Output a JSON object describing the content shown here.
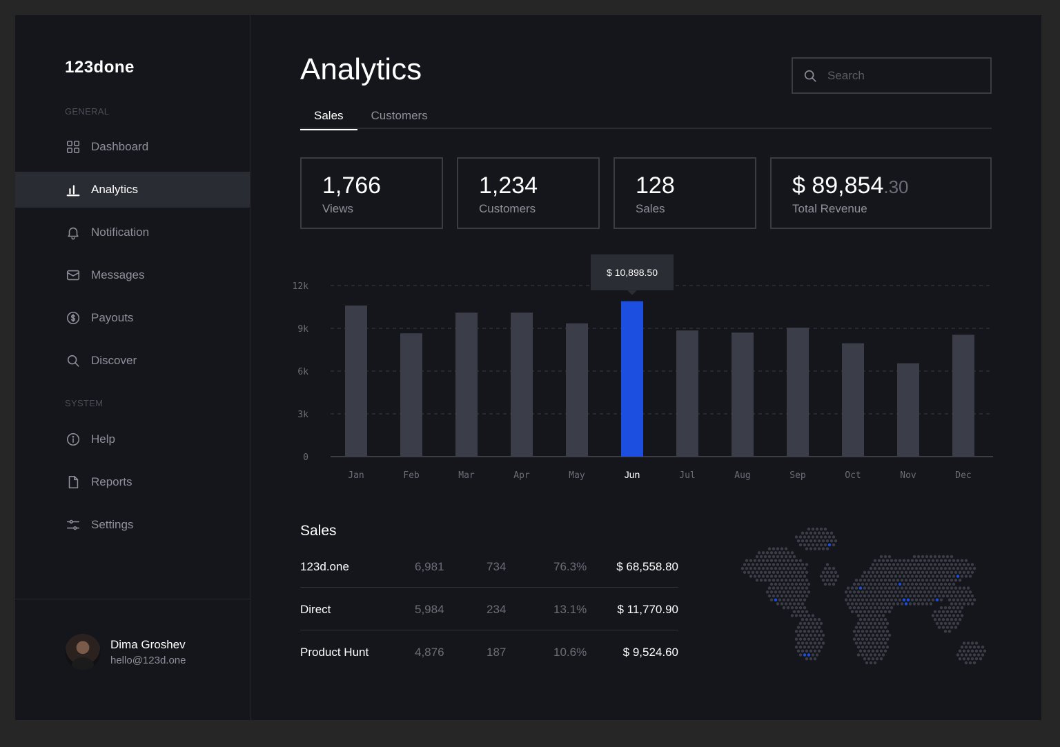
{
  "brand": {
    "logo": "123done"
  },
  "sidebar": {
    "general_label": "GENERAL",
    "system_label": "SYSTEM",
    "items": [
      {
        "label": "Dashboard",
        "icon": "grid-icon"
      },
      {
        "label": "Analytics",
        "icon": "bar-chart-icon"
      },
      {
        "label": "Notification",
        "icon": "bell-icon"
      },
      {
        "label": "Messages",
        "icon": "mail-icon"
      },
      {
        "label": "Payouts",
        "icon": "dollar-circle-icon"
      },
      {
        "label": "Discover",
        "icon": "search-icon"
      },
      {
        "label": "Help",
        "icon": "info-icon"
      },
      {
        "label": "Reports",
        "icon": "document-icon"
      },
      {
        "label": "Settings",
        "icon": "sliders-icon"
      }
    ],
    "active_item": "Analytics",
    "user": {
      "name": "Dima Groshev",
      "email": "hello@123d.one"
    }
  },
  "header": {
    "title": "Analytics",
    "search_placeholder": "Search",
    "tabs": [
      {
        "label": "Sales",
        "active": true
      },
      {
        "label": "Customers",
        "active": false
      }
    ]
  },
  "stats": [
    {
      "value": "1,766",
      "label": "Views"
    },
    {
      "value": "1,234",
      "label": "Customers"
    },
    {
      "value": "128",
      "label": "Sales"
    },
    {
      "value": "$ 89,854",
      "cents": ".30",
      "label": "Total Revenue"
    }
  ],
  "colors": {
    "accent": "#1c4fe0",
    "bar": "#3b3d48",
    "grid": "#3a3c44"
  },
  "chart_data": {
    "type": "bar",
    "categories": [
      "Jan",
      "Feb",
      "Mar",
      "Apr",
      "May",
      "Jun",
      "Jul",
      "Aug",
      "Sep",
      "Oct",
      "Nov",
      "Dec"
    ],
    "values": [
      10600,
      8650,
      10100,
      10100,
      9350,
      10898.5,
      8850,
      8700,
      9050,
      7950,
      6550,
      8550
    ],
    "y_ticks": [
      "0",
      "3k",
      "6k",
      "9k",
      "12k"
    ],
    "ylim": [
      0,
      12000
    ],
    "highlight": "Jun",
    "tooltip": "$ 10,898.50",
    "grid": true
  },
  "sales": {
    "title": "Sales",
    "rows": [
      {
        "name": "123d.one",
        "a": "6,981",
        "b": "734",
        "c": "76.3%",
        "revenue": "$ 68,558.80"
      },
      {
        "name": "Direct",
        "a": "5,984",
        "b": "234",
        "c": "13.1%",
        "revenue": "$ 11,770.90"
      },
      {
        "name": "Product Hunt",
        "a": "4,876",
        "b": "187",
        "c": "10.6%",
        "revenue": "$ 9,524.60"
      }
    ]
  }
}
